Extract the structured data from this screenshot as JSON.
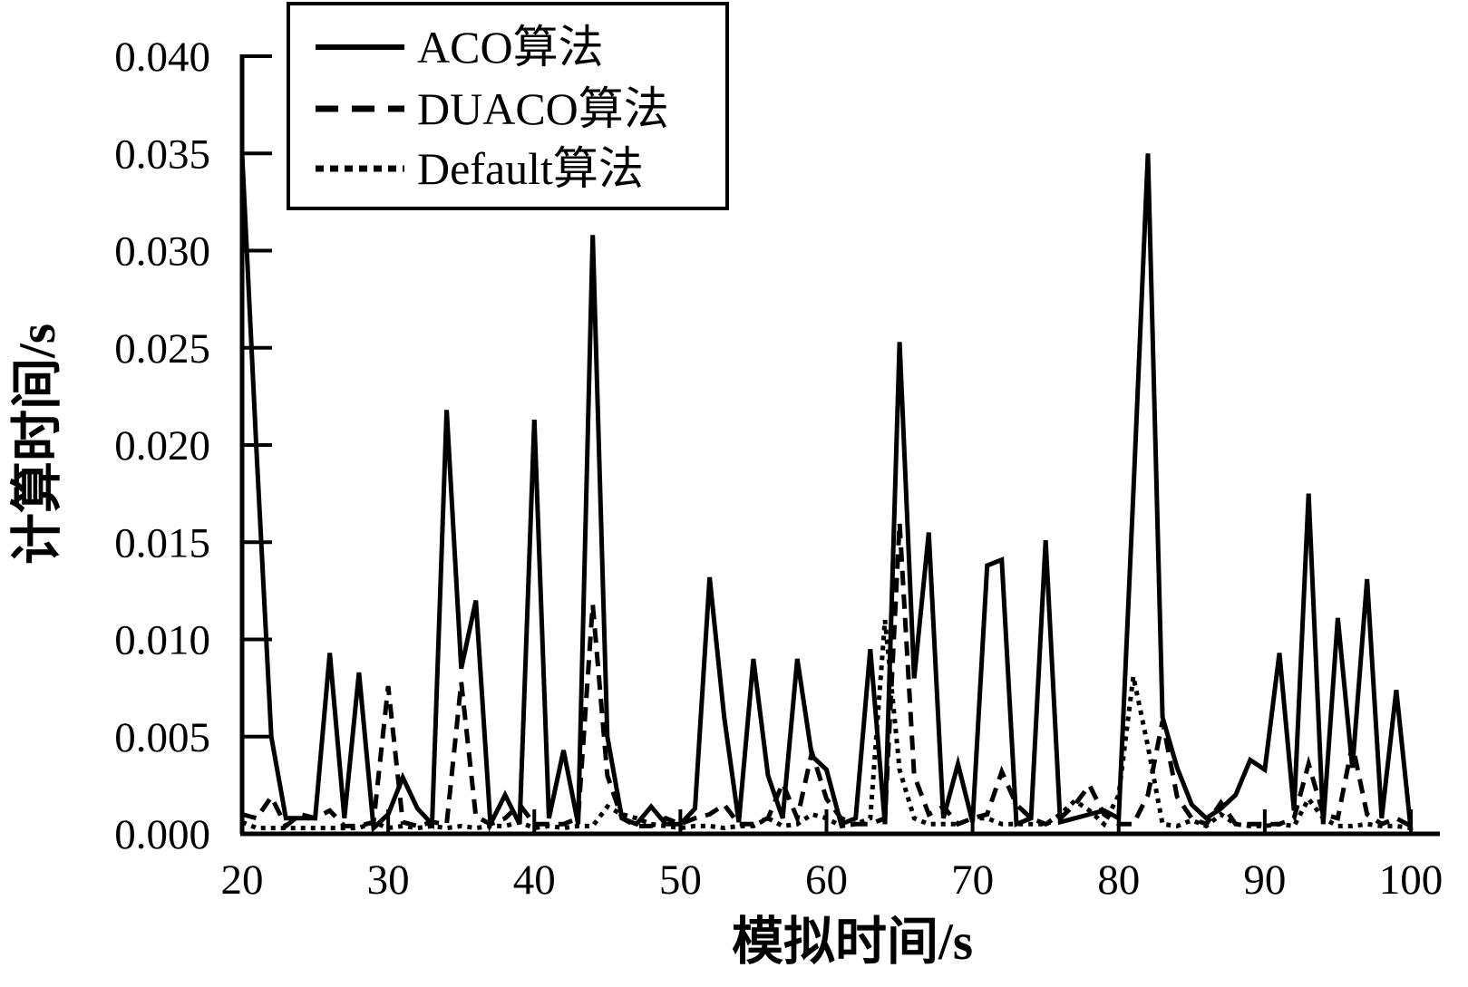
{
  "chart_data": {
    "type": "line",
    "title": "",
    "xlabel": "模拟时间/s",
    "ylabel": "计算时间/s",
    "xlim": [
      20,
      100
    ],
    "ylim": [
      0,
      0.04
    ],
    "x_ticks": [
      20,
      30,
      40,
      50,
      60,
      70,
      80,
      90,
      100
    ],
    "y_ticks": [
      0.0,
      0.005,
      0.01,
      0.015,
      0.02,
      0.025,
      0.03,
      0.035,
      0.04
    ],
    "grid": "off",
    "legend_position": "top-left-inside",
    "line_color": "#000000",
    "x": [
      20,
      21,
      22,
      23,
      24,
      25,
      26,
      27,
      28,
      29,
      30,
      31,
      32,
      33,
      34,
      35,
      36,
      37,
      38,
      39,
      40,
      41,
      42,
      43,
      44,
      45,
      46,
      47,
      48,
      49,
      50,
      51,
      52,
      53,
      54,
      55,
      56,
      57,
      58,
      59,
      60,
      61,
      62,
      63,
      64,
      65,
      66,
      67,
      68,
      69,
      70,
      71,
      72,
      73,
      74,
      75,
      76,
      77,
      78,
      79,
      80,
      81,
      82,
      83,
      84,
      85,
      86,
      87,
      88,
      89,
      90,
      91,
      92,
      93,
      94,
      95,
      96,
      97,
      98,
      99,
      100
    ],
    "series": [
      {
        "name": "ACO算法",
        "style": "solid",
        "values": [
          0.035,
          0.0195,
          0.005,
          0.0008,
          0.0008,
          0.0008,
          0.0093,
          0.0008,
          0.0083,
          0.0003,
          0.001,
          0.0029,
          0.0013,
          0.0005,
          0.0218,
          0.0085,
          0.012,
          0.0005,
          0.002,
          0.0005,
          0.0213,
          0.0008,
          0.0043,
          0.0005,
          0.0308,
          0.005,
          0.0008,
          0.0005,
          0.0014,
          0.0005,
          0.0005,
          0.0013,
          0.0132,
          0.006,
          0.0006,
          0.009,
          0.003,
          0.0008,
          0.009,
          0.004,
          0.0033,
          0.0005,
          0.0008,
          0.0095,
          0.0005,
          0.0253,
          0.008,
          0.0155,
          0.0008,
          0.0036,
          0.0006,
          0.0138,
          0.0141,
          0.0005,
          0.0008,
          0.0151,
          0.0006,
          0.0008,
          0.001,
          0.0012,
          0.0008,
          0.0175,
          0.035,
          0.006,
          0.0034,
          0.0015,
          0.0008,
          0.0013,
          0.002,
          0.0038,
          0.0033,
          0.0093,
          0.0012,
          0.0175,
          0.0005,
          0.0111,
          0.0034,
          0.0131,
          0.0008,
          0.0074,
          0.0002
        ]
      },
      {
        "name": "DUACO算法",
        "style": "dashed",
        "values": [
          0.001,
          0.0008,
          0.0019,
          0.0004,
          0.001,
          0.0008,
          0.0012,
          0.0004,
          0.0004,
          0.0006,
          0.0076,
          0.0006,
          0.0004,
          0.0006,
          0.0005,
          0.0078,
          0.0009,
          0.0005,
          0.0008,
          0.0015,
          0.0005,
          0.0005,
          0.0005,
          0.0008,
          0.0118,
          0.003,
          0.0008,
          0.0004,
          0.0004,
          0.0008,
          0.0005,
          0.0008,
          0.001,
          0.0015,
          0.0005,
          0.0005,
          0.0008,
          0.0026,
          0.0008,
          0.0042,
          0.0018,
          0.0008,
          0.0005,
          0.0005,
          0.0008,
          0.016,
          0.003,
          0.001,
          0.0014,
          0.0005,
          0.0008,
          0.001,
          0.0032,
          0.0015,
          0.0008,
          0.0005,
          0.0008,
          0.0015,
          0.0025,
          0.001,
          0.0005,
          0.0005,
          0.002,
          0.0058,
          0.0019,
          0.0008,
          0.0005,
          0.0016,
          0.0005,
          0.0005,
          0.0005,
          0.0005,
          0.0008,
          0.0036,
          0.001,
          0.0008,
          0.0046,
          0.001,
          0.0005,
          0.0008,
          0.0004
        ]
      },
      {
        "name": "Default算法",
        "style": "dotted",
        "values": [
          0.0006,
          0.0003,
          0.0003,
          0.0003,
          0.0003,
          0.0003,
          0.0003,
          0.0003,
          0.0003,
          0.0006,
          0.0003,
          0.0004,
          0.0003,
          0.0004,
          0.0003,
          0.0004,
          0.0003,
          0.0004,
          0.0004,
          0.0006,
          0.0003,
          0.0004,
          0.0003,
          0.0004,
          0.0004,
          0.0014,
          0.001,
          0.0008,
          0.0005,
          0.0004,
          0.0003,
          0.0004,
          0.0004,
          0.0003,
          0.0004,
          0.0004,
          0.0008,
          0.0004,
          0.0005,
          0.001,
          0.0008,
          0.0004,
          0.0005,
          0.0008,
          0.011,
          0.0033,
          0.0008,
          0.0005,
          0.0005,
          0.0005,
          0.0008,
          0.0008,
          0.0005,
          0.0005,
          0.0005,
          0.0005,
          0.001,
          0.0017,
          0.0012,
          0.0005,
          0.002,
          0.0081,
          0.0045,
          0.0005,
          0.0004,
          0.0007,
          0.0004,
          0.001,
          0.0005,
          0.0004,
          0.0004,
          0.0005,
          0.0004,
          0.0018,
          0.0008,
          0.0004,
          0.0004,
          0.0005,
          0.0004,
          0.0004,
          0.0003
        ]
      }
    ]
  }
}
